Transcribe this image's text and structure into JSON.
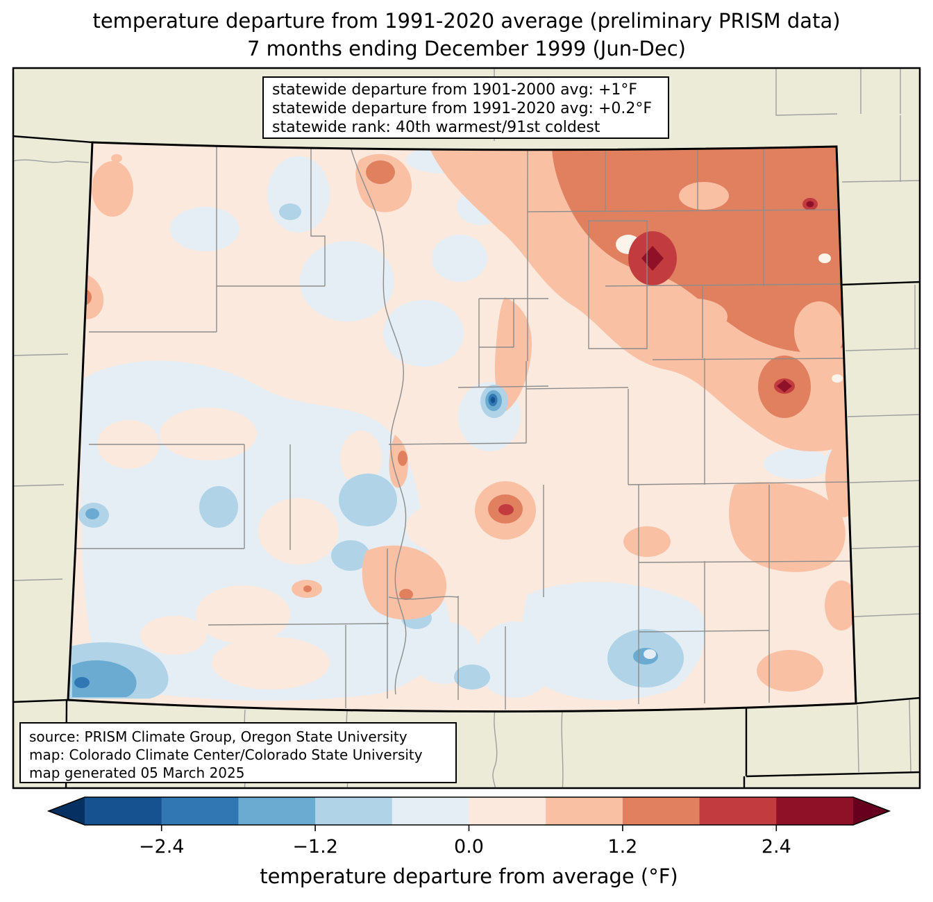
{
  "title": {
    "line1": "temperature departure from 1991-2020 average (preliminary PRISM data)",
    "line2": "7 months ending December 1999 (Jun-Dec)"
  },
  "stats_box": {
    "lines": [
      "statewide departure from 1901-2000 avg: +1°F",
      "statewide departure from 1991-2020 avg: +0.2°F",
      "statewide rank: 40th warmest/91st coldest"
    ]
  },
  "source_box": {
    "lines": [
      "source: PRISM Climate Group, Oregon State University",
      "map: Colorado Climate Center/Colorado State University",
      "map generated 05 March 2025"
    ]
  },
  "palette": {
    "figure_bg": "#ffffff",
    "land_bg": "#ebebd8",
    "county_line": "#8c8c8c",
    "neighbor_county_line": "#9e9e9e",
    "state_border": "#000000",
    "under": "#053061",
    "neg3": "#175290",
    "neg2": "#3077b3",
    "neg1b": "#6cabd1",
    "neg1a": "#b0d3e7",
    "neg0": "#e4eef4",
    "pos0": "#fbe9de",
    "pos1a": "#f9c0a4",
    "pos1b": "#e0805f",
    "pos2": "#c23c3f",
    "pos3": "#8e1127",
    "over": "#67001f",
    "near_white": "#fcf3ea"
  },
  "colorbar": {
    "label": "temperature departure from average (°F)",
    "range": [
      -3.0,
      3.0
    ],
    "segment_colors": [
      "#175290",
      "#3077b3",
      "#6cabd1",
      "#b0d3e7",
      "#e4eef4",
      "#fbe9de",
      "#f9c0a4",
      "#e0805f",
      "#c23c3f",
      "#8e1127"
    ],
    "under_color": "#053061",
    "over_color": "#67001f",
    "ticks": [
      {
        "value": -2.4,
        "label": "−2.4"
      },
      {
        "value": -1.2,
        "label": "−1.2"
      },
      {
        "value": 0.0,
        "label": "0.0"
      },
      {
        "value": 1.2,
        "label": "1.2"
      },
      {
        "value": 2.4,
        "label": "2.4"
      }
    ]
  }
}
